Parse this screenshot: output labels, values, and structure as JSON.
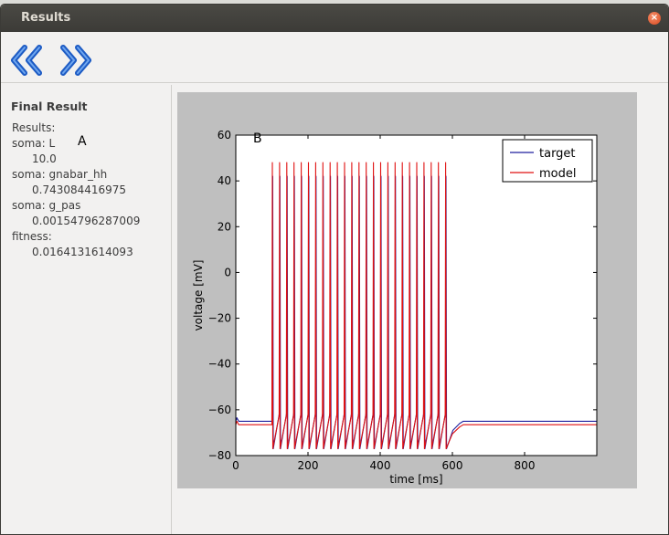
{
  "window": {
    "title": "Results",
    "close_icon": "close-icon"
  },
  "toolbar": {
    "back_icon": "double-chevron-left-icon",
    "forward_icon": "double-chevron-right-icon",
    "icon_color": "#2f6fd6"
  },
  "sidebar": {
    "heading": "Final Result",
    "results_label": "Results:",
    "params": [
      {
        "name": "soma: L",
        "value": "10.0"
      },
      {
        "name": "soma: gnabar_hh",
        "value": "0.743084416975"
      },
      {
        "name": "soma: g_pas",
        "value": "0.00154796287009"
      },
      {
        "name": "fitness:",
        "value": "0.0164131614093"
      }
    ],
    "marker": "A"
  },
  "chart_data": {
    "type": "line",
    "panel_marker": "B",
    "xlabel": "time [ms]",
    "ylabel": "voltage [mV]",
    "xlim": [
      0,
      1000
    ],
    "ylim": [
      -80,
      60
    ],
    "xticks": [
      0,
      200,
      400,
      600,
      800
    ],
    "yticks": [
      60,
      40,
      20,
      0,
      -20,
      -40,
      -60,
      -80
    ],
    "grid": false,
    "legend_position": "top-right",
    "stimulus_ms": [
      100,
      600
    ],
    "series": [
      {
        "name": "target",
        "color": "#1f1f9e",
        "rest_mv": -65,
        "peak_mv": 42,
        "trough_mv": -77,
        "spike_count": 25
      },
      {
        "name": "model",
        "color": "#e01010",
        "rest_mv": -66.5,
        "peak_mv": 48,
        "trough_mv": -77,
        "spike_count": 25
      }
    ]
  }
}
